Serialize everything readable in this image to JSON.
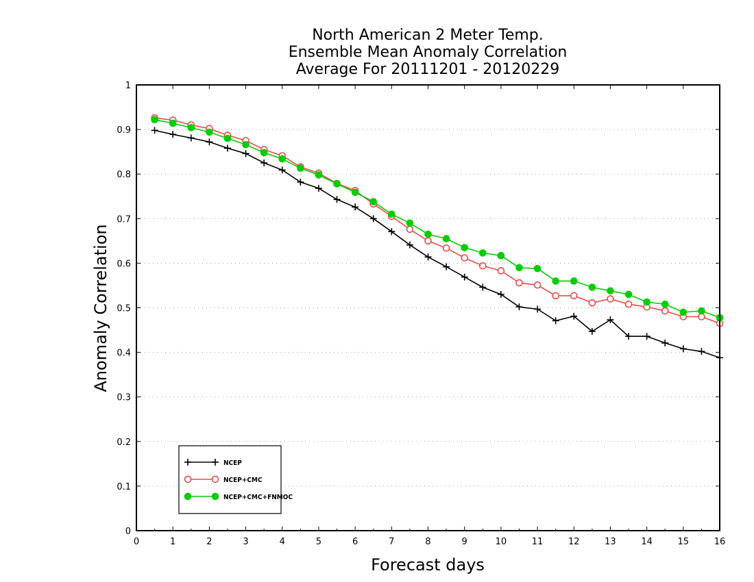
{
  "chart_data": {
    "type": "line",
    "title": [
      "North American 2 Meter Temp.",
      "Ensemble Mean Anomaly Correlation",
      "Average For 20111201 - 20120229"
    ],
    "xlabel": "Forecast days",
    "ylabel": "Anomaly Correlation",
    "xlim": [
      0,
      16
    ],
    "ylim": [
      0,
      1
    ],
    "x_ticks": [
      0,
      1,
      2,
      3,
      4,
      5,
      6,
      7,
      8,
      9,
      10,
      11,
      12,
      13,
      14,
      15,
      16
    ],
    "y_ticks": [
      0,
      0.1,
      0.2,
      0.3,
      0.4,
      0.5,
      0.6,
      0.7,
      0.8,
      0.9,
      1
    ],
    "grid": "dotted horizontal",
    "legend_position": "bottom-left",
    "x": [
      0.5,
      1,
      1.5,
      2,
      2.5,
      3,
      3.5,
      4,
      4.5,
      5,
      5.5,
      6,
      6.5,
      7,
      7.5,
      8,
      8.5,
      9,
      9.5,
      10,
      10.5,
      11,
      11.5,
      12,
      12.5,
      13,
      13.5,
      14,
      14.5,
      15,
      15.5,
      16
    ],
    "series": [
      {
        "name": "NCEP",
        "color": "#000000",
        "marker": "plus",
        "values": [
          0.898,
          0.889,
          0.881,
          0.872,
          0.858,
          0.846,
          0.825,
          0.809,
          0.782,
          0.768,
          0.743,
          0.726,
          0.7,
          0.671,
          0.641,
          0.614,
          0.592,
          0.569,
          0.546,
          0.53,
          0.502,
          0.497,
          0.471,
          0.481,
          0.447,
          0.473,
          0.436,
          0.436,
          0.421,
          0.408,
          0.402,
          0.388
        ]
      },
      {
        "name": "NCEP+CMC",
        "color": "#e84a4a",
        "marker": "open-circle",
        "values": [
          0.926,
          0.921,
          0.91,
          0.902,
          0.887,
          0.875,
          0.855,
          0.841,
          0.816,
          0.802,
          0.779,
          0.763,
          0.733,
          0.705,
          0.676,
          0.65,
          0.634,
          0.612,
          0.594,
          0.583,
          0.556,
          0.551,
          0.527,
          0.527,
          0.511,
          0.52,
          0.508,
          0.502,
          0.493,
          0.48,
          0.48,
          0.465
        ]
      },
      {
        "name": "NCEP+CMC+FNMOC",
        "color": "#00cc00",
        "marker": "filled-circle",
        "values": [
          0.922,
          0.914,
          0.904,
          0.894,
          0.88,
          0.866,
          0.848,
          0.834,
          0.813,
          0.798,
          0.778,
          0.759,
          0.738,
          0.71,
          0.69,
          0.665,
          0.655,
          0.635,
          0.623,
          0.617,
          0.59,
          0.588,
          0.56,
          0.56,
          0.546,
          0.538,
          0.53,
          0.513,
          0.508,
          0.49,
          0.493,
          0.478
        ]
      }
    ]
  }
}
